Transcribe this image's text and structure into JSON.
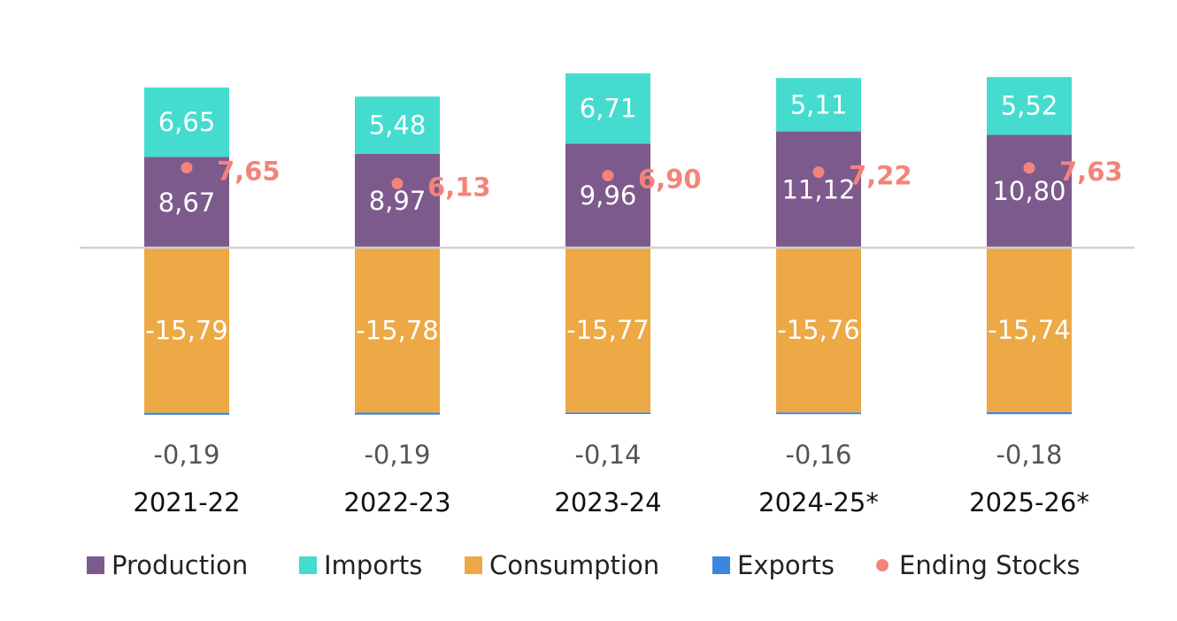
{
  "chart_data": {
    "type": "bar",
    "stacked": true,
    "categories": [
      "2021-22",
      "2022-23",
      "2023-24",
      "2024-25*",
      "2025-26*"
    ],
    "series": [
      {
        "name": "Production",
        "values": [
          8.67,
          8.97,
          9.96,
          11.12,
          10.8
        ],
        "labels": [
          "8,67",
          "8,97",
          "9,96",
          "11,12",
          "10,80"
        ],
        "color": "#7d5a8c"
      },
      {
        "name": "Imports",
        "values": [
          6.65,
          5.48,
          6.71,
          5.11,
          5.52
        ],
        "labels": [
          "6,65",
          "5,48",
          "6,71",
          "5,11",
          "5,52"
        ],
        "color": "#45dccf"
      },
      {
        "name": "Consumption",
        "values": [
          -15.79,
          -15.78,
          -15.77,
          -15.76,
          -15.74
        ],
        "labels": [
          "-15,79",
          "-15,78",
          "-15,77",
          "-15,76",
          "-15,74"
        ],
        "color": "#eda945"
      },
      {
        "name": "Exports",
        "values": [
          -0.19,
          -0.19,
          -0.14,
          -0.16,
          -0.18
        ],
        "labels": [
          "-0,19",
          "-0,19",
          "-0,14",
          "-0,16",
          "-0,18"
        ],
        "color": "#3a86e0"
      },
      {
        "name": "Ending Stocks",
        "type": "scatter",
        "values": [
          7.65,
          6.13,
          6.9,
          7.22,
          7.63
        ],
        "labels": [
          "7,65",
          "6,13",
          "6,90",
          "7,22",
          "7,63"
        ],
        "color": "#f4837a"
      }
    ],
    "ylim": [
      -16.0,
      16.6
    ],
    "grid": false,
    "zero_line": true,
    "legend": "bottom"
  }
}
